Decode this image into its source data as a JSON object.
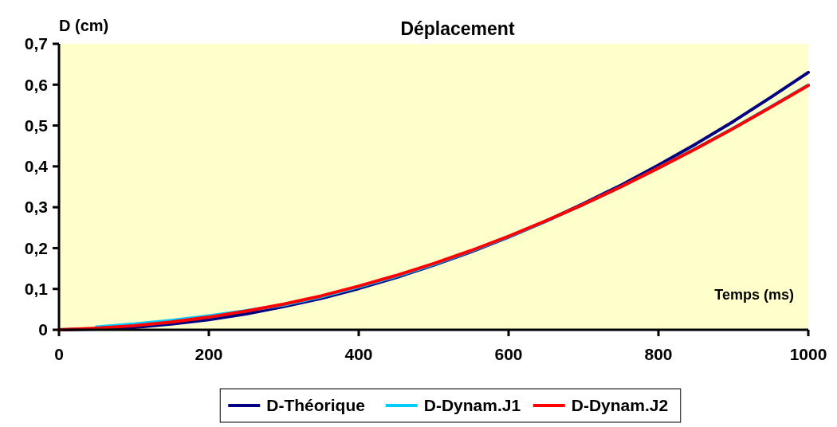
{
  "chart_data": {
    "type": "line",
    "title": "Déplacement",
    "xlabel": "Temps (ms)",
    "ylabel": "D (cm)",
    "x": [
      0,
      50,
      100,
      150,
      200,
      250,
      300,
      350,
      400,
      450,
      500,
      550,
      600,
      650,
      700,
      750,
      800,
      850,
      900,
      950,
      1000
    ],
    "series": [
      {
        "name": "D-Théorique",
        "color": "#000080",
        "values": [
          0,
          0.002,
          0.006,
          0.014,
          0.025,
          0.039,
          0.057,
          0.077,
          0.101,
          0.128,
          0.158,
          0.191,
          0.227,
          0.266,
          0.309,
          0.354,
          0.403,
          0.455,
          0.51,
          0.569,
          0.63
        ]
      },
      {
        "name": "D-Dynam.J1",
        "color": "#00ccff",
        "values": [
          null,
          0.007,
          0.014,
          0.023,
          0.034,
          0.047,
          0.061,
          0.081,
          0.105,
          0.131,
          0.16,
          0.193,
          0.228,
          0.266,
          0.307,
          0.35,
          0.396,
          0.444,
          0.494,
          0.546,
          0.599
        ]
      },
      {
        "name": "D-Dynam.J2",
        "color": "#ff0000",
        "values": [
          0,
          0.004,
          0.01,
          0.019,
          0.031,
          0.046,
          0.063,
          0.083,
          0.107,
          0.133,
          0.162,
          0.194,
          0.229,
          0.267,
          0.307,
          0.35,
          0.396,
          0.443,
          0.493,
          0.545,
          0.598
        ]
      }
    ],
    "xlim": [
      0,
      1000
    ],
    "xticks": [
      0,
      200,
      400,
      600,
      800,
      1000
    ],
    "ylim": [
      0,
      0.7
    ],
    "yticks": [
      0,
      {
        "value": 0.1,
        "label": "0,1"
      },
      {
        "value": 0.2,
        "label": "0,2"
      },
      {
        "value": 0.3,
        "label": "0,3"
      },
      {
        "value": 0.4,
        "label": "0,4"
      },
      {
        "value": 0.5,
        "label": "0,5"
      },
      {
        "value": 0.6,
        "label": "0,6"
      },
      {
        "value": 0.7,
        "label": "0,7"
      }
    ],
    "grid": false,
    "legend": "bottom",
    "marker": "none",
    "line_style": "solid"
  }
}
